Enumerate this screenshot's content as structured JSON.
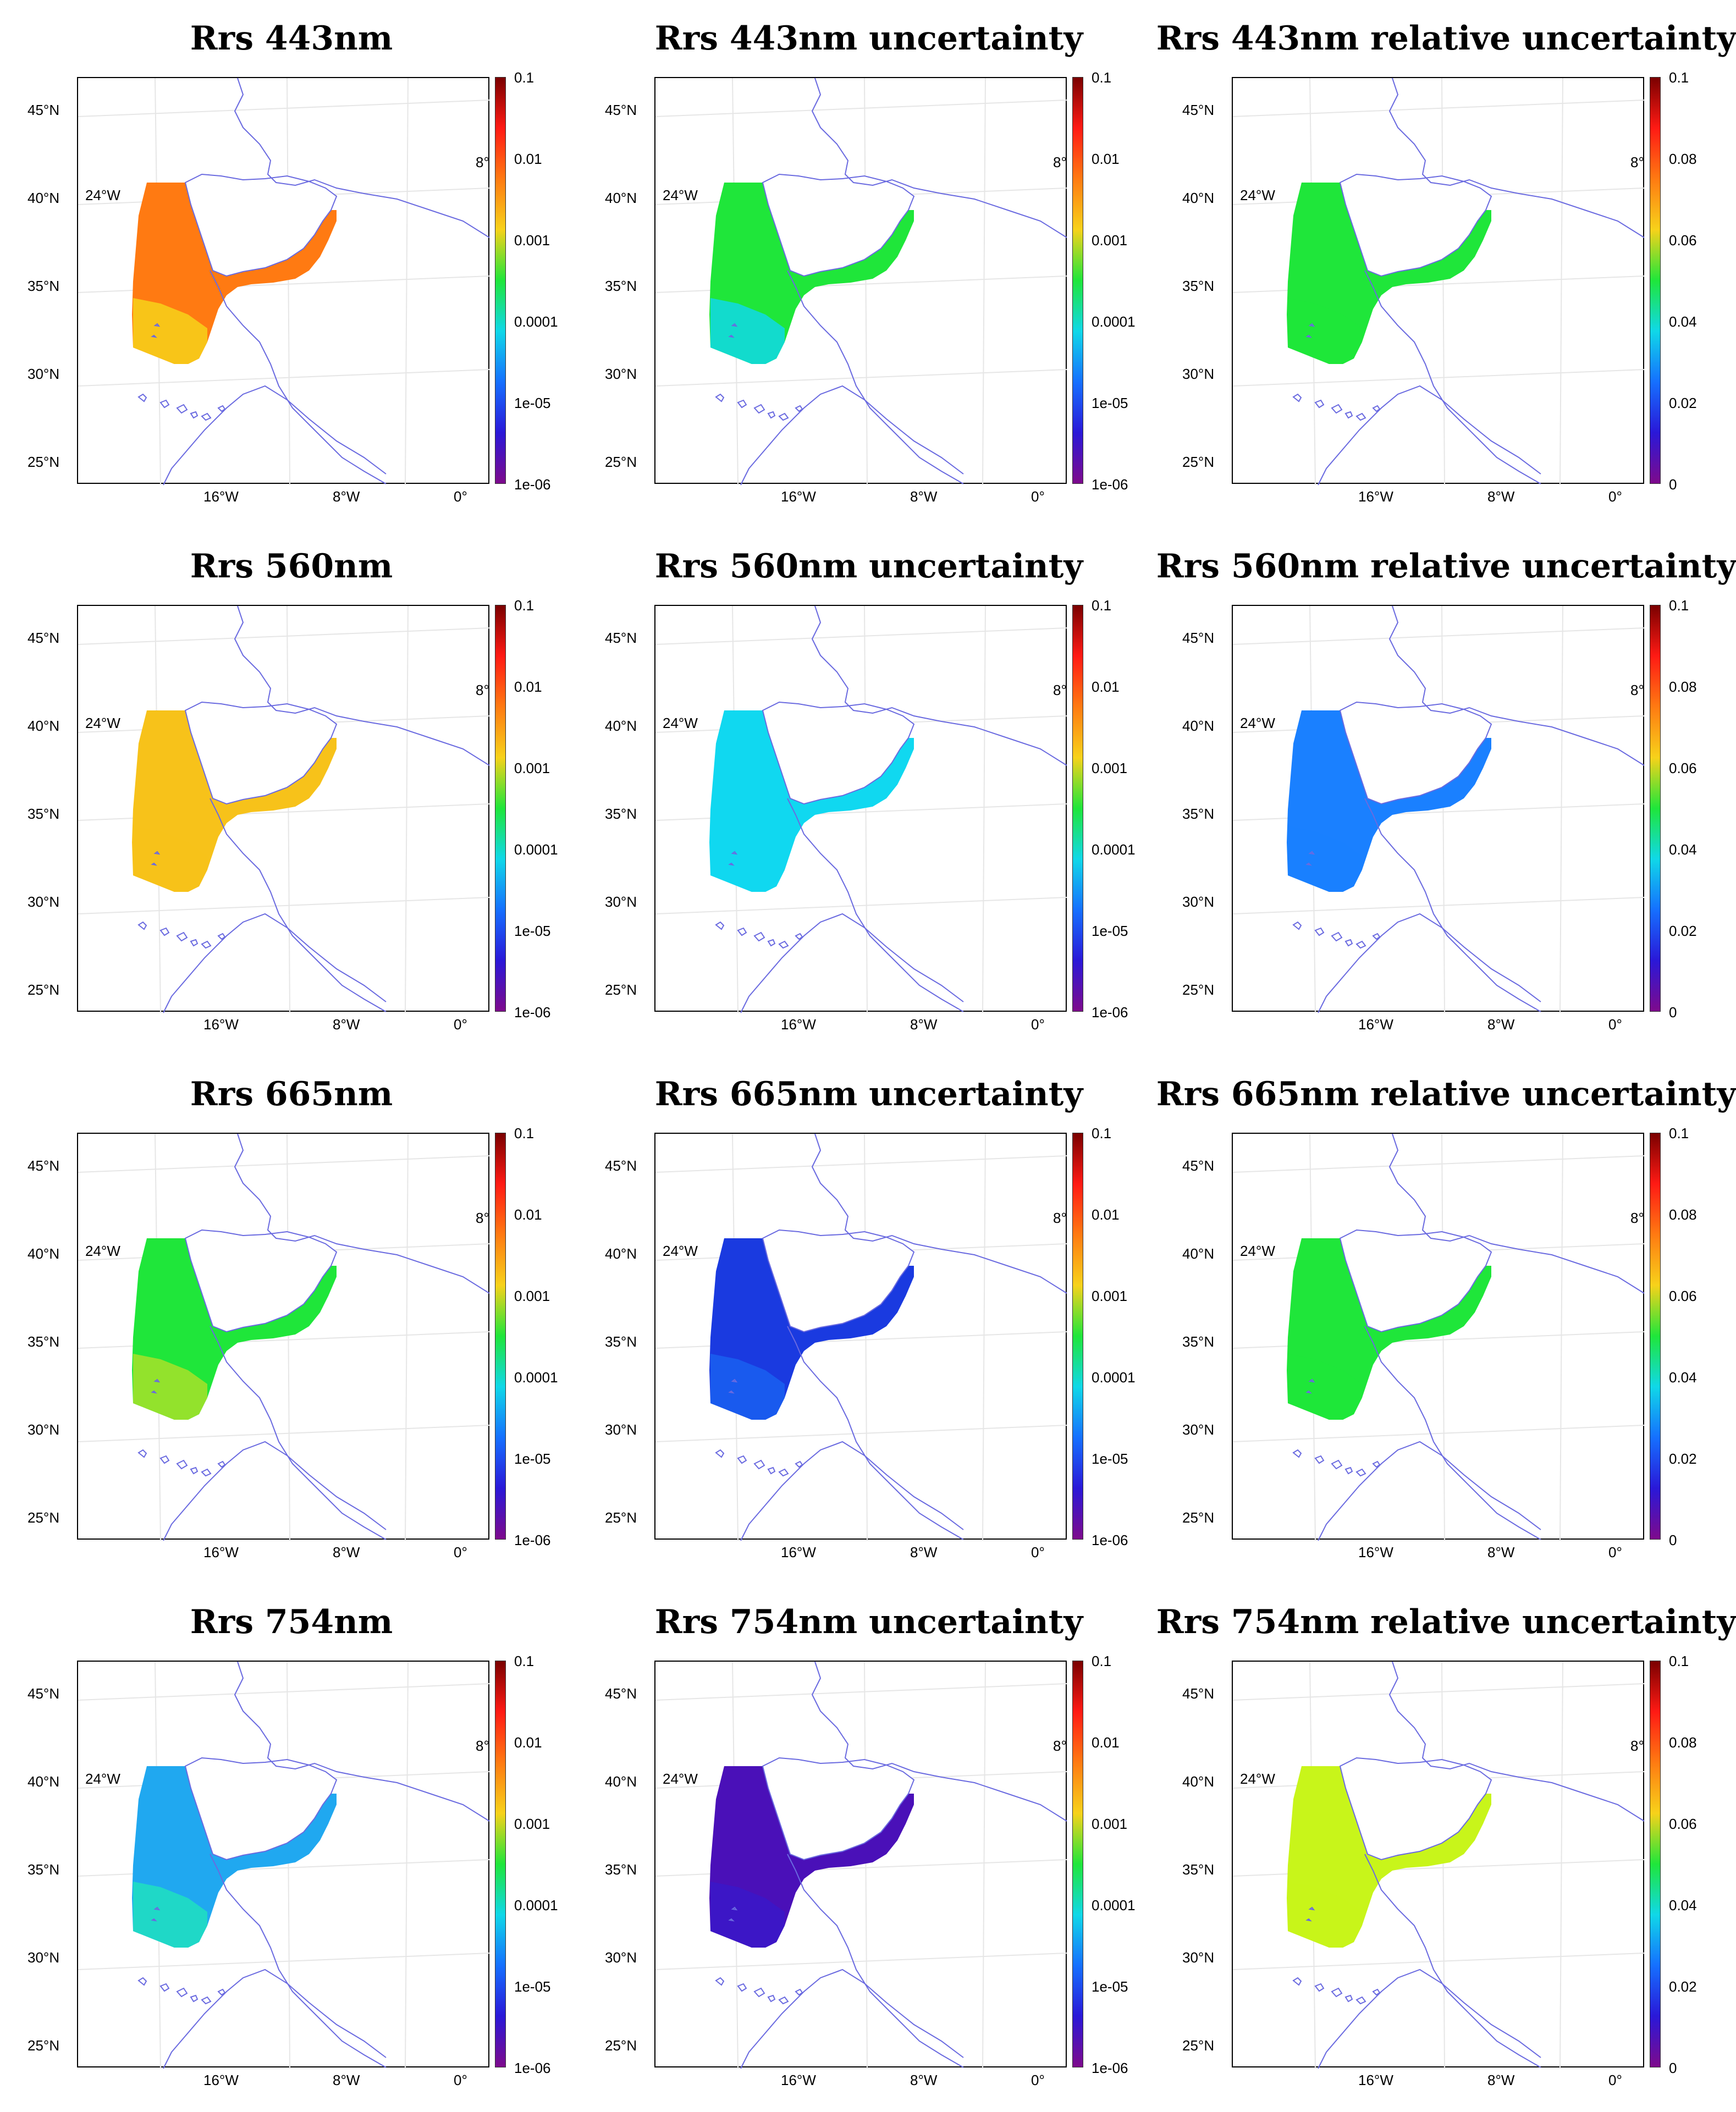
{
  "colormap_stops": [
    "#7e0a8c",
    "#2a18d8",
    "#1570ff",
    "#10d8e8",
    "#1fe63a",
    "#f7d21a",
    "#ff7a12",
    "#ff1a14",
    "#7a0000"
  ],
  "lat_labels": [
    "45°N",
    "40°N",
    "35°N",
    "30°N",
    "25°N"
  ],
  "lon_labels": [
    "16°W",
    "8°W",
    "0°"
  ],
  "stray_labels": [
    "24°W",
    "8°"
  ],
  "colorbar_log_labels": [
    "0.1",
    "0.01",
    "0.001",
    "0.0001",
    "1e-05",
    "1e-06"
  ],
  "colorbar_rel_labels": [
    "0.1",
    "0.08",
    "0.06",
    "0.04",
    "0.02",
    "0"
  ],
  "panels": [
    {
      "title": "Rrs 443nm",
      "fill": "#ff7a12",
      "south_fill": "#f7d21a",
      "scale": "log"
    },
    {
      "title": "Rrs 443nm uncertainty",
      "fill": "#1fe63a",
      "south_fill": "#10d8e8",
      "scale": "log"
    },
    {
      "title": "Rrs 443nm relative uncertainty",
      "fill": "#1fe63a",
      "south_fill": "#1fe63a",
      "scale": "rel"
    },
    {
      "title": "Rrs 560nm",
      "fill": "#f7c21a",
      "south_fill": "#f7c21a",
      "scale": "log"
    },
    {
      "title": "Rrs 560nm uncertainty",
      "fill": "#10d8f0",
      "south_fill": "#10d8f0",
      "scale": "log"
    },
    {
      "title": "Rrs 560nm relative uncertainty",
      "fill": "#1a80ff",
      "south_fill": "#1a80ff",
      "scale": "rel"
    },
    {
      "title": "Rrs 665nm",
      "fill": "#1fe63a",
      "south_fill": "#a8e02a",
      "scale": "log"
    },
    {
      "title": "Rrs 665nm uncertainty",
      "fill": "#1a3ae0",
      "south_fill": "#1a60f0",
      "scale": "log"
    },
    {
      "title": "Rrs 665nm relative uncertainty",
      "fill": "#1fe63a",
      "south_fill": "#1fe63a",
      "scale": "rel"
    },
    {
      "title": "Rrs 754nm",
      "fill": "#20a8f0",
      "south_fill": "#20e0c0",
      "scale": "log"
    },
    {
      "title": "Rrs 754nm uncertainty",
      "fill": "#4a10b8",
      "south_fill": "#3a18c8",
      "scale": "log"
    },
    {
      "title": "Rrs 754nm relative uncertainty",
      "fill": "#c8f51a",
      "south_fill": "#c8f51a",
      "scale": "rel"
    }
  ]
}
